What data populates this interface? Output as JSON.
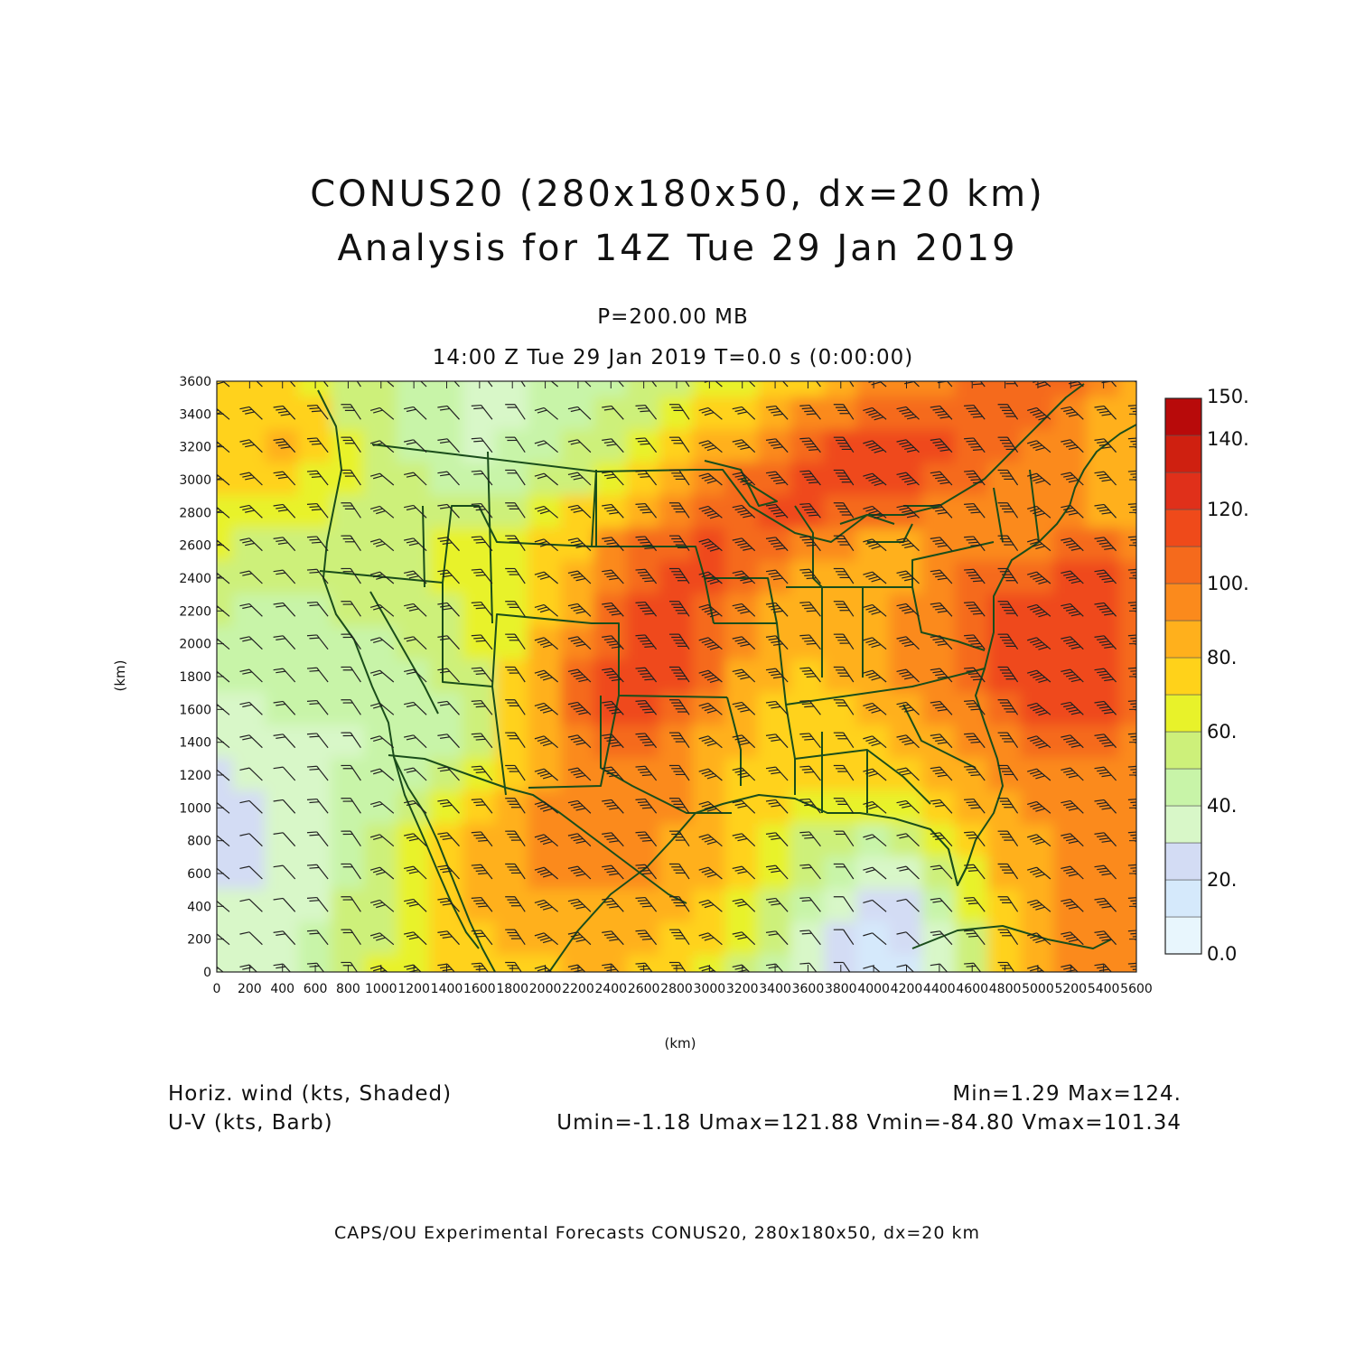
{
  "title": {
    "line1": "CONUS20 (280x180x50, dx=20 km)",
    "line2": "Analysis for 14Z Tue 29 Jan 2019"
  },
  "level_label": "P=200.00 MB",
  "valid_time": "14:00 Z Tue 29 Jan 2019    T=0.0 s (0:00:00)",
  "axes": {
    "x_label": "(km)",
    "y_label": "(km)",
    "x_range": [
      0,
      5600
    ],
    "y_range": [
      0,
      3600
    ],
    "x_ticks": [
      "0",
      "200",
      "400",
      "600",
      "800",
      "1000",
      "1200",
      "1400",
      "1600",
      "1800",
      "2000",
      "2200",
      "2400",
      "2600",
      "2800",
      "3000",
      "3200",
      "3400",
      "3600",
      "3800",
      "4000",
      "4200",
      "4400",
      "4600",
      "4800",
      "5000",
      "5200",
      "5400",
      "5600"
    ],
    "y_ticks": [
      "0",
      "200",
      "400",
      "600",
      "800",
      "1000",
      "1200",
      "1400",
      "1600",
      "1800",
      "2000",
      "2200",
      "2400",
      "2600",
      "2800",
      "3000",
      "3200",
      "3400",
      "3600"
    ]
  },
  "colorbar": {
    "labels": [
      "150.",
      "140.",
      "120.",
      "100.",
      "80.",
      "60.",
      "40.",
      "20.",
      "0.0"
    ],
    "colors": [
      "#e8f6fd",
      "#d5e9fb",
      "#d3dcf4",
      "#d8f7c8",
      "#c8f4a8",
      "#cdf07a",
      "#e8f22a",
      "#ffd21a",
      "#ffb01c",
      "#fb8a1c",
      "#f56a1c",
      "#ef4a1a",
      "#e0301a",
      "#cf2010",
      "#b80a0a"
    ],
    "min": 0,
    "max": 150
  },
  "field": {
    "grid_step_km": 200,
    "speed_kts": [
      [
        78,
        70,
        72,
        68,
        56,
        50,
        44,
        40,
        36,
        36,
        40,
        44,
        48,
        52,
        56,
        60,
        64,
        70,
        76,
        84,
        90,
        94,
        98,
        100,
        104,
        104,
        100,
        92,
        80
      ],
      [
        76,
        74,
        78,
        70,
        58,
        52,
        46,
        40,
        36,
        36,
        40,
        46,
        52,
        58,
        64,
        70,
        76,
        84,
        90,
        98,
        104,
        108,
        108,
        108,
        104,
        100,
        96,
        88,
        80
      ],
      [
        74,
        76,
        80,
        72,
        60,
        54,
        48,
        42,
        38,
        40,
        44,
        50,
        58,
        66,
        74,
        80,
        88,
        96,
        104,
        110,
        112,
        112,
        110,
        104,
        100,
        96,
        92,
        88,
        80
      ],
      [
        70,
        72,
        74,
        68,
        60,
        54,
        50,
        46,
        44,
        46,
        52,
        58,
        66,
        76,
        84,
        92,
        100,
        106,
        112,
        114,
        114,
        112,
        106,
        100,
        96,
        92,
        90,
        86,
        80
      ],
      [
        66,
        64,
        62,
        60,
        58,
        56,
        54,
        54,
        56,
        58,
        62,
        70,
        78,
        88,
        98,
        104,
        108,
        110,
        110,
        108,
        104,
        100,
        96,
        94,
        92,
        92,
        90,
        88,
        82
      ],
      [
        60,
        58,
        56,
        56,
        56,
        58,
        58,
        60,
        62,
        64,
        70,
        78,
        90,
        100,
        108,
        110,
        106,
        100,
        94,
        90,
        88,
        88,
        90,
        94,
        96,
        98,
        100,
        100,
        92
      ],
      [
        56,
        54,
        52,
        52,
        54,
        56,
        58,
        60,
        62,
        66,
        72,
        84,
        96,
        108,
        114,
        110,
        100,
        90,
        84,
        82,
        84,
        88,
        94,
        100,
        104,
        108,
        110,
        110,
        100
      ],
      [
        50,
        48,
        48,
        48,
        50,
        52,
        56,
        58,
        62,
        66,
        76,
        88,
        102,
        114,
        116,
        108,
        96,
        86,
        82,
        82,
        86,
        92,
        98,
        104,
        110,
        114,
        116,
        114,
        104
      ],
      [
        44,
        44,
        46,
        46,
        46,
        48,
        50,
        54,
        60,
        68,
        80,
        94,
        108,
        118,
        114,
        104,
        92,
        84,
        80,
        82,
        86,
        92,
        98,
        104,
        110,
        116,
        118,
        116,
        106
      ],
      [
        40,
        40,
        42,
        42,
        42,
        42,
        44,
        50,
        58,
        70,
        84,
        100,
        112,
        118,
        112,
        100,
        88,
        80,
        78,
        80,
        84,
        90,
        96,
        102,
        110,
        116,
        118,
        116,
        106
      ],
      [
        36,
        38,
        40,
        40,
        40,
        40,
        40,
        48,
        58,
        70,
        84,
        100,
        110,
        112,
        104,
        94,
        84,
        76,
        74,
        76,
        80,
        86,
        92,
        98,
        104,
        110,
        112,
        110,
        100
      ],
      [
        32,
        34,
        36,
        38,
        38,
        40,
        42,
        48,
        58,
        70,
        84,
        96,
        104,
        104,
        96,
        88,
        80,
        74,
        72,
        74,
        78,
        82,
        86,
        92,
        98,
        104,
        106,
        104,
        98
      ],
      [
        28,
        30,
        32,
        36,
        40,
        42,
        46,
        52,
        62,
        74,
        86,
        94,
        98,
        96,
        90,
        84,
        78,
        72,
        70,
        70,
        72,
        76,
        80,
        86,
        92,
        96,
        98,
        98,
        94
      ],
      [
        26,
        28,
        30,
        36,
        44,
        48,
        54,
        62,
        72,
        84,
        92,
        96,
        96,
        94,
        90,
        84,
        76,
        70,
        66,
        62,
        62,
        66,
        72,
        80,
        86,
        90,
        94,
        94,
        92
      ],
      [
        26,
        28,
        30,
        36,
        46,
        52,
        60,
        70,
        80,
        88,
        92,
        94,
        94,
        92,
        88,
        82,
        74,
        66,
        58,
        50,
        46,
        50,
        60,
        72,
        82,
        88,
        92,
        94,
        92
      ],
      [
        28,
        28,
        30,
        36,
        48,
        56,
        64,
        74,
        82,
        86,
        90,
        92,
        92,
        90,
        86,
        80,
        72,
        62,
        50,
        40,
        34,
        38,
        50,
        66,
        80,
        88,
        92,
        94,
        92
      ],
      [
        30,
        30,
        32,
        38,
        50,
        58,
        66,
        74,
        80,
        84,
        86,
        88,
        88,
        86,
        82,
        76,
        68,
        56,
        44,
        32,
        24,
        28,
        42,
        60,
        76,
        86,
        92,
        94,
        92
      ],
      [
        32,
        32,
        34,
        40,
        50,
        58,
        66,
        72,
        76,
        80,
        82,
        84,
        84,
        82,
        78,
        72,
        62,
        50,
        36,
        24,
        18,
        22,
        36,
        56,
        74,
        86,
        92,
        94,
        92
      ],
      [
        34,
        34,
        36,
        42,
        52,
        60,
        66,
        70,
        74,
        76,
        78,
        80,
        80,
        78,
        74,
        68,
        58,
        46,
        32,
        20,
        14,
        18,
        32,
        52,
        72,
        86,
        92,
        94,
        92
      ]
    ]
  },
  "legend": {
    "shaded_label": "Horiz. wind (kts, Shaded)",
    "barb_label": "U-V (kts, Barb)",
    "minmax": "Min=1.29 Max=124.",
    "uv_stats": "Umin=-1.18 Umax=121.88 Vmin=-84.80 Vmax=101.34"
  },
  "credit": "CAPS/OU Experimental Forecasts  CONUS20, 280x180x50, dx=20 km"
}
